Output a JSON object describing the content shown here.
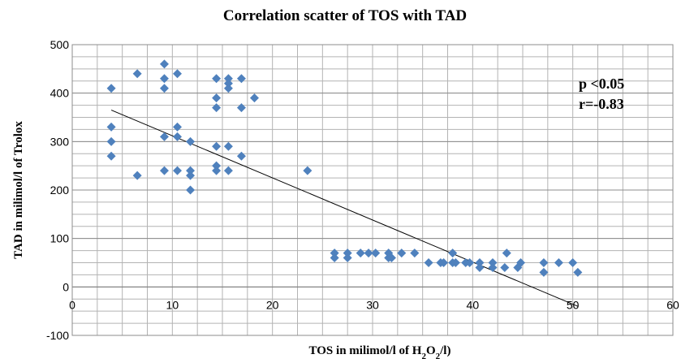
{
  "chart_data": {
    "type": "scatter",
    "title": "Correlation scatter of TOS with TAD",
    "xlabel": "TOS in milimol/l of  H2O2/l)",
    "ylabel": "TAD in milimol/l of Trolox",
    "xlim": [
      0,
      60
    ],
    "ylim": [
      -100,
      500
    ],
    "x_ticks": [
      "0",
      "10",
      "20",
      "30",
      "40",
      "50",
      "60"
    ],
    "y_ticks": [
      "-100",
      "0",
      "100",
      "200",
      "300",
      "400",
      "500"
    ],
    "grid": true,
    "marker_color": "#4f81bd",
    "points": [
      {
        "x": 3.9,
        "y": 410
      },
      {
        "x": 3.9,
        "y": 330
      },
      {
        "x": 3.9,
        "y": 300
      },
      {
        "x": 3.9,
        "y": 270
      },
      {
        "x": 6.5,
        "y": 440
      },
      {
        "x": 6.5,
        "y": 230
      },
      {
        "x": 9.2,
        "y": 460
      },
      {
        "x": 9.2,
        "y": 430
      },
      {
        "x": 9.2,
        "y": 410
      },
      {
        "x": 9.2,
        "y": 310
      },
      {
        "x": 9.2,
        "y": 240
      },
      {
        "x": 10.5,
        "y": 440
      },
      {
        "x": 10.5,
        "y": 330
      },
      {
        "x": 10.5,
        "y": 310
      },
      {
        "x": 10.5,
        "y": 240
      },
      {
        "x": 11.8,
        "y": 300
      },
      {
        "x": 11.8,
        "y": 240
      },
      {
        "x": 11.8,
        "y": 230
      },
      {
        "x": 11.8,
        "y": 200
      },
      {
        "x": 14.4,
        "y": 430
      },
      {
        "x": 14.4,
        "y": 390
      },
      {
        "x": 14.4,
        "y": 370
      },
      {
        "x": 14.4,
        "y": 290
      },
      {
        "x": 14.4,
        "y": 250
      },
      {
        "x": 14.4,
        "y": 240
      },
      {
        "x": 15.6,
        "y": 430
      },
      {
        "x": 15.6,
        "y": 420
      },
      {
        "x": 15.6,
        "y": 410
      },
      {
        "x": 15.6,
        "y": 290
      },
      {
        "x": 15.6,
        "y": 240
      },
      {
        "x": 16.9,
        "y": 430
      },
      {
        "x": 16.9,
        "y": 370
      },
      {
        "x": 16.9,
        "y": 270
      },
      {
        "x": 18.2,
        "y": 390
      },
      {
        "x": 23.5,
        "y": 240
      },
      {
        "x": 26.2,
        "y": 70
      },
      {
        "x": 26.2,
        "y": 60
      },
      {
        "x": 27.5,
        "y": 70
      },
      {
        "x": 27.5,
        "y": 60
      },
      {
        "x": 28.8,
        "y": 70
      },
      {
        "x": 29.6,
        "y": 70
      },
      {
        "x": 30.3,
        "y": 70
      },
      {
        "x": 31.6,
        "y": 70
      },
      {
        "x": 31.6,
        "y": 60
      },
      {
        "x": 31.9,
        "y": 60
      },
      {
        "x": 32.9,
        "y": 70
      },
      {
        "x": 34.2,
        "y": 70
      },
      {
        "x": 35.6,
        "y": 50
      },
      {
        "x": 36.8,
        "y": 50
      },
      {
        "x": 37.1,
        "y": 50
      },
      {
        "x": 38.0,
        "y": 70
      },
      {
        "x": 38.0,
        "y": 50
      },
      {
        "x": 38.3,
        "y": 50
      },
      {
        "x": 39.3,
        "y": 50
      },
      {
        "x": 39.7,
        "y": 50
      },
      {
        "x": 40.7,
        "y": 50
      },
      {
        "x": 40.7,
        "y": 40
      },
      {
        "x": 42.0,
        "y": 50
      },
      {
        "x": 42.0,
        "y": 40
      },
      {
        "x": 43.2,
        "y": 40
      },
      {
        "x": 43.4,
        "y": 70
      },
      {
        "x": 44.5,
        "y": 40
      },
      {
        "x": 44.8,
        "y": 50
      },
      {
        "x": 47.1,
        "y": 50
      },
      {
        "x": 47.1,
        "y": 30
      },
      {
        "x": 48.6,
        "y": 50
      },
      {
        "x": 50.0,
        "y": 50
      },
      {
        "x": 50.5,
        "y": 30
      }
    ],
    "trendline": {
      "x": [
        3.9,
        50.5
      ],
      "y": [
        365,
        -40
      ]
    },
    "annotations": [
      "p <0.05",
      "r=-0.83"
    ]
  }
}
